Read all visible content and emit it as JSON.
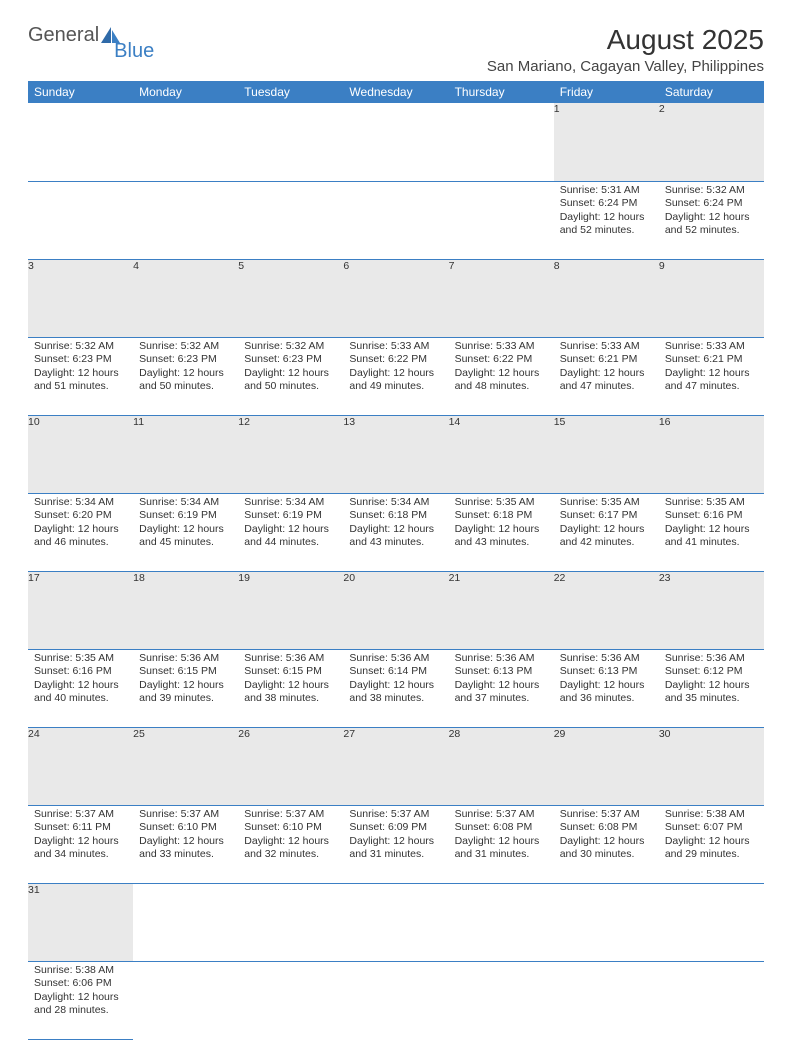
{
  "brand": {
    "part1": "General",
    "part2": "Blue"
  },
  "title": "August 2025",
  "location": "San Mariano, Cagayan Valley, Philippines",
  "colors": {
    "header_bg": "#3b7fc4",
    "header_fg": "#ffffff",
    "daynum_bg": "#e9e9e9",
    "border": "#3b7fc4"
  },
  "weekdays": [
    "Sunday",
    "Monday",
    "Tuesday",
    "Wednesday",
    "Thursday",
    "Friday",
    "Saturday"
  ],
  "weeks": [
    [
      null,
      null,
      null,
      null,
      null,
      {
        "n": "1",
        "sr": "Sunrise: 5:31 AM",
        "ss": "Sunset: 6:24 PM",
        "d1": "Daylight: 12 hours",
        "d2": "and 52 minutes."
      },
      {
        "n": "2",
        "sr": "Sunrise: 5:32 AM",
        "ss": "Sunset: 6:24 PM",
        "d1": "Daylight: 12 hours",
        "d2": "and 52 minutes."
      }
    ],
    [
      {
        "n": "3",
        "sr": "Sunrise: 5:32 AM",
        "ss": "Sunset: 6:23 PM",
        "d1": "Daylight: 12 hours",
        "d2": "and 51 minutes."
      },
      {
        "n": "4",
        "sr": "Sunrise: 5:32 AM",
        "ss": "Sunset: 6:23 PM",
        "d1": "Daylight: 12 hours",
        "d2": "and 50 minutes."
      },
      {
        "n": "5",
        "sr": "Sunrise: 5:32 AM",
        "ss": "Sunset: 6:23 PM",
        "d1": "Daylight: 12 hours",
        "d2": "and 50 minutes."
      },
      {
        "n": "6",
        "sr": "Sunrise: 5:33 AM",
        "ss": "Sunset: 6:22 PM",
        "d1": "Daylight: 12 hours",
        "d2": "and 49 minutes."
      },
      {
        "n": "7",
        "sr": "Sunrise: 5:33 AM",
        "ss": "Sunset: 6:22 PM",
        "d1": "Daylight: 12 hours",
        "d2": "and 48 minutes."
      },
      {
        "n": "8",
        "sr": "Sunrise: 5:33 AM",
        "ss": "Sunset: 6:21 PM",
        "d1": "Daylight: 12 hours",
        "d2": "and 47 minutes."
      },
      {
        "n": "9",
        "sr": "Sunrise: 5:33 AM",
        "ss": "Sunset: 6:21 PM",
        "d1": "Daylight: 12 hours",
        "d2": "and 47 minutes."
      }
    ],
    [
      {
        "n": "10",
        "sr": "Sunrise: 5:34 AM",
        "ss": "Sunset: 6:20 PM",
        "d1": "Daylight: 12 hours",
        "d2": "and 46 minutes."
      },
      {
        "n": "11",
        "sr": "Sunrise: 5:34 AM",
        "ss": "Sunset: 6:19 PM",
        "d1": "Daylight: 12 hours",
        "d2": "and 45 minutes."
      },
      {
        "n": "12",
        "sr": "Sunrise: 5:34 AM",
        "ss": "Sunset: 6:19 PM",
        "d1": "Daylight: 12 hours",
        "d2": "and 44 minutes."
      },
      {
        "n": "13",
        "sr": "Sunrise: 5:34 AM",
        "ss": "Sunset: 6:18 PM",
        "d1": "Daylight: 12 hours",
        "d2": "and 43 minutes."
      },
      {
        "n": "14",
        "sr": "Sunrise: 5:35 AM",
        "ss": "Sunset: 6:18 PM",
        "d1": "Daylight: 12 hours",
        "d2": "and 43 minutes."
      },
      {
        "n": "15",
        "sr": "Sunrise: 5:35 AM",
        "ss": "Sunset: 6:17 PM",
        "d1": "Daylight: 12 hours",
        "d2": "and 42 minutes."
      },
      {
        "n": "16",
        "sr": "Sunrise: 5:35 AM",
        "ss": "Sunset: 6:16 PM",
        "d1": "Daylight: 12 hours",
        "d2": "and 41 minutes."
      }
    ],
    [
      {
        "n": "17",
        "sr": "Sunrise: 5:35 AM",
        "ss": "Sunset: 6:16 PM",
        "d1": "Daylight: 12 hours",
        "d2": "and 40 minutes."
      },
      {
        "n": "18",
        "sr": "Sunrise: 5:36 AM",
        "ss": "Sunset: 6:15 PM",
        "d1": "Daylight: 12 hours",
        "d2": "and 39 minutes."
      },
      {
        "n": "19",
        "sr": "Sunrise: 5:36 AM",
        "ss": "Sunset: 6:15 PM",
        "d1": "Daylight: 12 hours",
        "d2": "and 38 minutes."
      },
      {
        "n": "20",
        "sr": "Sunrise: 5:36 AM",
        "ss": "Sunset: 6:14 PM",
        "d1": "Daylight: 12 hours",
        "d2": "and 38 minutes."
      },
      {
        "n": "21",
        "sr": "Sunrise: 5:36 AM",
        "ss": "Sunset: 6:13 PM",
        "d1": "Daylight: 12 hours",
        "d2": "and 37 minutes."
      },
      {
        "n": "22",
        "sr": "Sunrise: 5:36 AM",
        "ss": "Sunset: 6:13 PM",
        "d1": "Daylight: 12 hours",
        "d2": "and 36 minutes."
      },
      {
        "n": "23",
        "sr": "Sunrise: 5:36 AM",
        "ss": "Sunset: 6:12 PM",
        "d1": "Daylight: 12 hours",
        "d2": "and 35 minutes."
      }
    ],
    [
      {
        "n": "24",
        "sr": "Sunrise: 5:37 AM",
        "ss": "Sunset: 6:11 PM",
        "d1": "Daylight: 12 hours",
        "d2": "and 34 minutes."
      },
      {
        "n": "25",
        "sr": "Sunrise: 5:37 AM",
        "ss": "Sunset: 6:10 PM",
        "d1": "Daylight: 12 hours",
        "d2": "and 33 minutes."
      },
      {
        "n": "26",
        "sr": "Sunrise: 5:37 AM",
        "ss": "Sunset: 6:10 PM",
        "d1": "Daylight: 12 hours",
        "d2": "and 32 minutes."
      },
      {
        "n": "27",
        "sr": "Sunrise: 5:37 AM",
        "ss": "Sunset: 6:09 PM",
        "d1": "Daylight: 12 hours",
        "d2": "and 31 minutes."
      },
      {
        "n": "28",
        "sr": "Sunrise: 5:37 AM",
        "ss": "Sunset: 6:08 PM",
        "d1": "Daylight: 12 hours",
        "d2": "and 31 minutes."
      },
      {
        "n": "29",
        "sr": "Sunrise: 5:37 AM",
        "ss": "Sunset: 6:08 PM",
        "d1": "Daylight: 12 hours",
        "d2": "and 30 minutes."
      },
      {
        "n": "30",
        "sr": "Sunrise: 5:38 AM",
        "ss": "Sunset: 6:07 PM",
        "d1": "Daylight: 12 hours",
        "d2": "and 29 minutes."
      }
    ],
    [
      {
        "n": "31",
        "sr": "Sunrise: 5:38 AM",
        "ss": "Sunset: 6:06 PM",
        "d1": "Daylight: 12 hours",
        "d2": "and 28 minutes."
      },
      null,
      null,
      null,
      null,
      null,
      null
    ]
  ]
}
